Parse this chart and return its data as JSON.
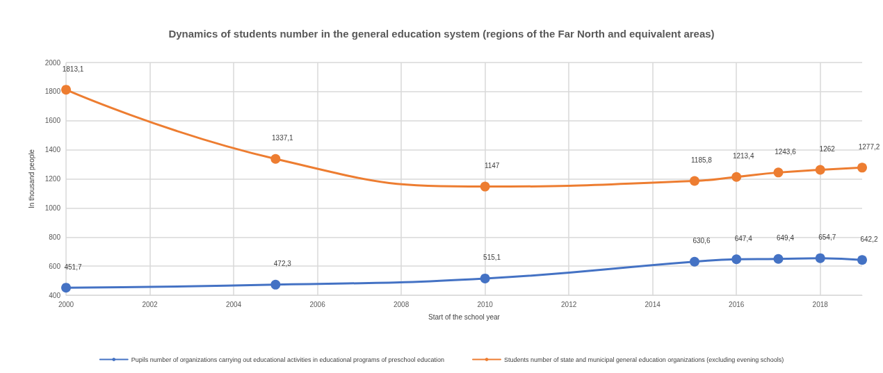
{
  "chart_data": {
    "type": "line",
    "title": "Dynamics of students number in the general education system (regions of the Far North and equivalent areas)",
    "xlabel": "Start of the school year",
    "ylabel": "In thousand people",
    "x": [
      2000,
      2005,
      2010,
      2015,
      2016,
      2017,
      2018,
      2019
    ],
    "series": [
      {
        "name": "Pupils number of organizations carrying out educational activities in educational programs of preschool education",
        "color": "#4472c4",
        "values": [
          451.7,
          472.3,
          515.1,
          630.6,
          647.4,
          649.4,
          654.7,
          642.2
        ],
        "value_labels": [
          "451,7",
          "472,3",
          "515,1",
          "630,6",
          "647,4",
          "649,4",
          "654,7",
          "642,2"
        ]
      },
      {
        "name": "Students number of state and municipal general education organizations (excluding evening schools)",
        "color": "#ed7d31",
        "values": [
          1813.1,
          1337.1,
          1147,
          1185.8,
          1213.4,
          1243.6,
          1262,
          1277.2
        ],
        "value_labels": [
          "1813,1",
          "1337,1",
          "1147",
          "1185,8",
          "1213,4",
          "1243,6",
          "1262",
          "1277,2"
        ]
      }
    ],
    "xlim": [
      2000,
      2019
    ],
    "xticks": [
      2000,
      2002,
      2004,
      2006,
      2008,
      2010,
      2012,
      2014,
      2016,
      2018
    ],
    "ylim": [
      400,
      2000
    ],
    "yticks": [
      400,
      600,
      800,
      1000,
      1200,
      1400,
      1600,
      1800,
      2000
    ],
    "grid": true,
    "legend": "bottom",
    "marker": "circle",
    "line_style": "solid"
  }
}
